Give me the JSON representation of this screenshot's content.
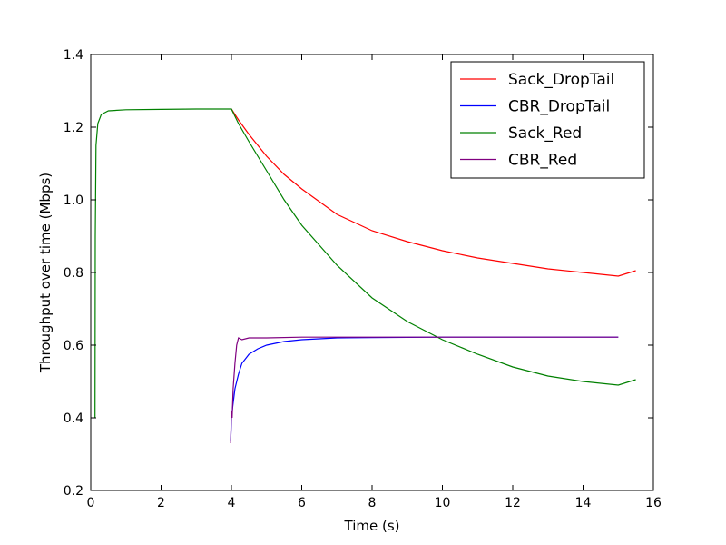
{
  "chart_data": {
    "type": "line",
    "title": "",
    "xlabel": "Time (s)",
    "ylabel": "Throughput over time (Mbps)",
    "xlim": [
      0,
      16
    ],
    "ylim": [
      0.2,
      1.4
    ],
    "xticks": [
      0,
      2,
      4,
      6,
      8,
      10,
      12,
      14,
      16
    ],
    "yticks": [
      0.2,
      0.4,
      0.6,
      0.8,
      1.0,
      1.2,
      1.4
    ],
    "xtick_labels": [
      "0",
      "2",
      "4",
      "6",
      "8",
      "10",
      "12",
      "14",
      "16"
    ],
    "ytick_labels": [
      "0.2",
      "0.4",
      "0.6",
      "0.8",
      "1.0",
      "1.2",
      "1.4"
    ],
    "grid": false,
    "legend_position": "top-right",
    "series": [
      {
        "name": "Sack_DropTail",
        "color": "#ff0000",
        "x": [
          4.0,
          4.2,
          4.5,
          5.0,
          5.5,
          6.0,
          7.0,
          8.0,
          9.0,
          10.0,
          11.0,
          12.0,
          13.0,
          14.0,
          15.0,
          15.5
        ],
        "y": [
          1.25,
          1.22,
          1.18,
          1.12,
          1.07,
          1.03,
          0.96,
          0.915,
          0.885,
          0.86,
          0.84,
          0.825,
          0.81,
          0.8,
          0.79,
          0.805
        ]
      },
      {
        "name": "CBR_DropTail",
        "color": "#0000ff",
        "x": [
          3.98,
          4.0,
          4.05,
          4.1,
          4.2,
          4.3,
          4.5,
          4.75,
          5.0,
          5.5,
          6.0,
          7.0,
          8.0,
          10.0,
          12.0,
          15.0
        ],
        "y": [
          0.335,
          0.4,
          0.44,
          0.48,
          0.52,
          0.55,
          0.575,
          0.59,
          0.6,
          0.61,
          0.615,
          0.62,
          0.621,
          0.622,
          0.622,
          0.622
        ]
      },
      {
        "name": "Sack_Red",
        "color": "#008000",
        "x": [
          0.12,
          0.13,
          0.15,
          0.2,
          0.3,
          0.5,
          1.0,
          2.0,
          3.0,
          4.0,
          4.2,
          4.5,
          5.0,
          5.5,
          6.0,
          7.0,
          8.0,
          9.0,
          10.0,
          11.0,
          12.0,
          13.0,
          14.0,
          15.0,
          15.5
        ],
        "y": [
          0.4,
          0.9,
          1.15,
          1.21,
          1.235,
          1.245,
          1.248,
          1.249,
          1.25,
          1.25,
          1.21,
          1.16,
          1.08,
          1.0,
          0.93,
          0.82,
          0.73,
          0.665,
          0.615,
          0.575,
          0.54,
          0.515,
          0.5,
          0.49,
          0.505
        ]
      },
      {
        "name": "CBR_Red",
        "color": "#800080",
        "x": [
          3.98,
          4.0,
          4.02,
          4.05,
          4.1,
          4.15,
          4.2,
          4.3,
          4.5,
          5.0,
          6.0,
          7.0,
          8.0,
          10.0,
          12.0,
          15.0
        ],
        "y": [
          0.33,
          0.42,
          0.4,
          0.48,
          0.55,
          0.6,
          0.62,
          0.615,
          0.62,
          0.62,
          0.622,
          0.622,
          0.622,
          0.622,
          0.622,
          0.622
        ]
      }
    ]
  }
}
